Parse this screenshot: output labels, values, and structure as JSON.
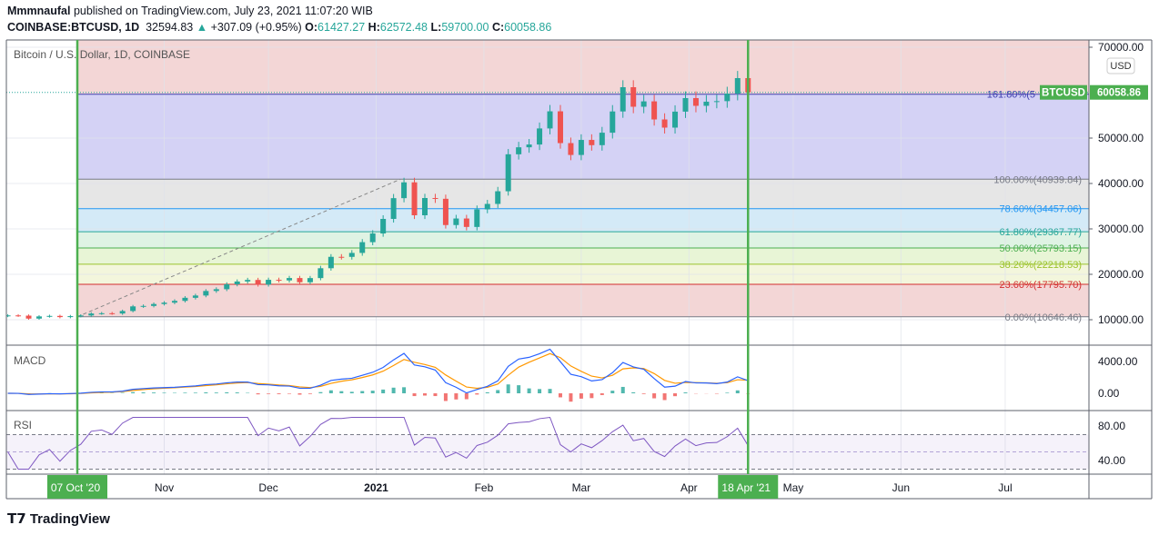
{
  "header": {
    "author": "Mmmnaufal",
    "published": "published on TradingView.com, July 23, 2021 11:07:20 WIB",
    "symbol": "COINBASE:BTCUSD, 1D",
    "last": "32594.83",
    "change": "+307.09 (+0.95%)",
    "o_label": "O:",
    "o": "61427.27",
    "h_label": "H:",
    "h": "62572.48",
    "l_label": "L:",
    "l": "59700.00",
    "c_label": "C:",
    "c": "60058.86"
  },
  "footer": {
    "logo": "TradingView"
  },
  "colors": {
    "up": "#26a69a",
    "down": "#ef5350",
    "green_marker": "#4caf50",
    "macd": "#2962ff",
    "signal": "#ff9800",
    "rsi": "#7e57c2"
  },
  "chart_data": [
    {
      "type": "candlestick",
      "title": "Bitcoin / U.S. Dollar, 1D, COINBASE",
      "currency": "USD",
      "ylim": [
        5000,
        72000
      ],
      "yticks": [
        "70000.00",
        "50000.00",
        "40000.00",
        "30000.00",
        "20000.00",
        "10000.00"
      ],
      "ytick_values": [
        70000,
        50000,
        40000,
        30000,
        20000,
        10000
      ],
      "x_ticks": [
        {
          "label": "Nov",
          "date": "2020-11-01"
        },
        {
          "label": "Dec",
          "date": "2020-12-01"
        },
        {
          "label": "2021",
          "date": "2021-01-01"
        },
        {
          "label": "Feb",
          "date": "2021-02-01"
        },
        {
          "label": "Mar",
          "date": "2021-03-01"
        },
        {
          "label": "Apr",
          "date": "2021-04-01"
        },
        {
          "label": "May",
          "date": "2021-05-01"
        },
        {
          "label": "Jun",
          "date": "2021-06-01"
        },
        {
          "label": "Jul",
          "date": "2021-07-01"
        }
      ],
      "markers": [
        {
          "label": "07 Oct '20",
          "date": "2020-10-07"
        },
        {
          "label": "18 Apr '21",
          "date": "2021-04-18"
        }
      ],
      "last_price": {
        "symbol": "BTCUSD",
        "value": "60058.86",
        "price": 60058.86
      },
      "fib_trend": {
        "from": {
          "date": "2020-10-07",
          "price": 10646.46
        },
        "to": {
          "date": "2021-01-08",
          "price": 40939.84
        }
      },
      "fib_levels": [
        {
          "label": "161.80%(5",
          "price": 59661.2,
          "color": "#3f3fb0",
          "fill": "#d4d2f5"
        },
        {
          "label": "100.00%(40939.84)",
          "price": 40939.84,
          "color": "#787b86",
          "fill": "#e6e6e6"
        },
        {
          "label": "78.60%(34457.06)",
          "price": 34457.06,
          "color": "#2196f3",
          "fill": "#d4eaf7"
        },
        {
          "label": "61.80%(29367.77)",
          "price": 29367.77,
          "color": "#26a69a",
          "fill": "#dff3e4"
        },
        {
          "label": "50.00%(25793.15)",
          "price": 25793.15,
          "color": "#4caf50",
          "fill": "#e8f5d6"
        },
        {
          "label": "38.20%(22218.53)",
          "price": 22218.53,
          "color": "#9cc32c",
          "fill": "#f3f6dc"
        },
        {
          "label": "23.60%(17795.70)",
          "price": 17795.7,
          "color": "#d32f2f",
          "fill": "#f3d6d6"
        },
        {
          "label": "0.00%(10646.46)",
          "price": 10646.46,
          "color": "#787b86",
          "fill": "#f3d6d6"
        }
      ],
      "top_fill": "#f3d6d6",
      "dates": [
        "2020-09-17",
        "2020-09-20",
        "2020-09-23",
        "2020-09-26",
        "2020-09-29",
        "2020-10-02",
        "2020-10-05",
        "2020-10-08",
        "2020-10-11",
        "2020-10-14",
        "2020-10-17",
        "2020-10-20",
        "2020-10-23",
        "2020-10-26",
        "2020-10-29",
        "2020-11-01",
        "2020-11-04",
        "2020-11-07",
        "2020-11-10",
        "2020-11-13",
        "2020-11-16",
        "2020-11-19",
        "2020-11-22",
        "2020-11-25",
        "2020-11-28",
        "2020-12-01",
        "2020-12-04",
        "2020-12-07",
        "2020-12-10",
        "2020-12-13",
        "2020-12-16",
        "2020-12-19",
        "2020-12-22",
        "2020-12-25",
        "2020-12-28",
        "2020-12-31",
        "2021-01-03",
        "2021-01-06",
        "2021-01-09",
        "2021-01-12",
        "2021-01-15",
        "2021-01-18",
        "2021-01-21",
        "2021-01-24",
        "2021-01-27",
        "2021-01-30",
        "2021-02-02",
        "2021-02-05",
        "2021-02-08",
        "2021-02-11",
        "2021-02-14",
        "2021-02-17",
        "2021-02-20",
        "2021-02-23",
        "2021-02-26",
        "2021-03-01",
        "2021-03-04",
        "2021-03-07",
        "2021-03-10",
        "2021-03-13",
        "2021-03-16",
        "2021-03-19",
        "2021-03-22",
        "2021-03-25",
        "2021-03-28",
        "2021-03-31",
        "2021-04-03",
        "2021-04-06",
        "2021-04-09",
        "2021-04-12",
        "2021-04-15",
        "2021-04-18"
      ],
      "close": [
        10950,
        10900,
        10250,
        10730,
        10840,
        10580,
        10790,
        10930,
        11370,
        11430,
        11370,
        11920,
        12940,
        13040,
        13460,
        13760,
        14150,
        14830,
        15330,
        16330,
        16720,
        17800,
        18420,
        18760,
        17740,
        18790,
        18660,
        19180,
        18260,
        19170,
        21340,
        23850,
        23840,
        24710,
        27080,
        28990,
        32200,
        36770,
        40250,
        33000,
        36800,
        36630,
        30850,
        32290,
        30430,
        34300,
        35500,
        38290,
        46430,
        47970,
        48580,
        52120,
        55890,
        48890,
        46280,
        49590,
        48440,
        51180,
        55860,
        61200,
        56900,
        58080,
        54100,
        52300,
        55820,
        58800,
        57100,
        58010,
        58130,
        59800,
        63200,
        60058.86
      ]
    },
    {
      "type": "line",
      "title": "MACD",
      "yticks": [
        "4000.00",
        "0.00"
      ],
      "ytick_values": [
        4000,
        0
      ]
    },
    {
      "type": "line",
      "title": "RSI",
      "yticks": [
        "80.00",
        "40.00"
      ],
      "ytick_values": [
        80,
        40
      ],
      "bands": [
        70,
        50,
        30
      ]
    }
  ]
}
